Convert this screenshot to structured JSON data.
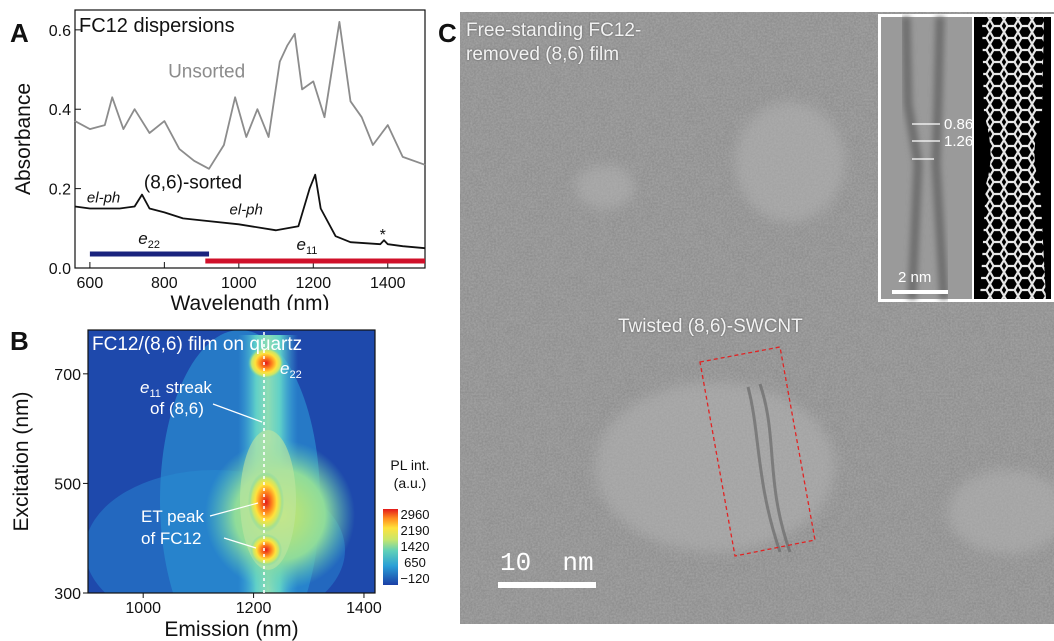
{
  "panelA": {
    "letter": "A",
    "title": "FC12 dispersions",
    "xlabel": "Wavelength (nm)",
    "ylabel": "Absorbance",
    "xticks": [
      "600",
      "800",
      "1000",
      "1200",
      "1400"
    ],
    "yticks": [
      "0.0",
      "0.2",
      "0.4",
      "0.6"
    ],
    "labels": {
      "unsorted": "Unsorted",
      "sorted": "(8,6)-sorted",
      "elph1": "el-ph",
      "elph2": "el-ph",
      "e22": "e",
      "e22sub": "22",
      "e11": "e",
      "e11sub": "11",
      "star": "*"
    },
    "colors": {
      "unsorted": "#8c8c8c",
      "sorted": "#111111",
      "e22bar": "#1a237e",
      "e11bar": "#d0102a"
    }
  },
  "panelB": {
    "letter": "B",
    "title": "FC12/(8,6) film on quartz",
    "xlabel": "Emission (nm)",
    "ylabel": "Excitation (nm)",
    "xticks": [
      "1000",
      "1200",
      "1400"
    ],
    "yticks": [
      "300",
      "500",
      "700"
    ],
    "e22": "e",
    "e22sub": "22",
    "streak1": "e",
    "streak1sub": "11",
    "streak1rest": " streak",
    "streak2": "of (8,6)",
    "et1": "ET peak",
    "et2": "of FC12",
    "cbar_title1": "PL int.",
    "cbar_title2": "(a.u.)",
    "cbar_ticks": [
      "2960",
      "2190",
      "1420",
      "650",
      "−120"
    ]
  },
  "panelC": {
    "letter": "C",
    "caption1": "Free-standing FC12-",
    "caption2": "removed (8,6) film",
    "twisted": "Twisted (8,6)-SWCNT",
    "scale": "10  nm",
    "inset_scale": "2 nm",
    "inset_val1": "0.86",
    "inset_val2": "1.26"
  },
  "chart_data": [
    {
      "type": "line",
      "title": "FC12 dispersions",
      "xlabel": "Wavelength (nm)",
      "ylabel": "Absorbance",
      "xlim": [
        560,
        1500
      ],
      "ylim": [
        0,
        0.65
      ],
      "series": [
        {
          "name": "Unsorted",
          "x": [
            560,
            600,
            640,
            660,
            690,
            720,
            760,
            800,
            840,
            880,
            920,
            960,
            990,
            1020,
            1050,
            1080,
            1110,
            1130,
            1150,
            1170,
            1200,
            1230,
            1270,
            1300,
            1330,
            1360,
            1400,
            1440,
            1500
          ],
          "y": [
            0.37,
            0.35,
            0.36,
            0.43,
            0.35,
            0.4,
            0.34,
            0.37,
            0.3,
            0.27,
            0.25,
            0.31,
            0.43,
            0.33,
            0.4,
            0.33,
            0.52,
            0.56,
            0.59,
            0.45,
            0.47,
            0.38,
            0.62,
            0.42,
            0.38,
            0.31,
            0.36,
            0.28,
            0.26
          ]
        },
        {
          "name": "(8,6)-sorted",
          "x": [
            560,
            600,
            680,
            720,
            740,
            760,
            800,
            850,
            900,
            1000,
            1100,
            1160,
            1190,
            1205,
            1220,
            1260,
            1300,
            1380,
            1390,
            1400,
            1440,
            1500
          ],
          "y": [
            0.155,
            0.15,
            0.15,
            0.155,
            0.185,
            0.15,
            0.14,
            0.125,
            0.12,
            0.11,
            0.095,
            0.105,
            0.2,
            0.235,
            0.15,
            0.08,
            0.065,
            0.06,
            0.07,
            0.06,
            0.055,
            0.05
          ]
        }
      ]
    },
    {
      "type": "heatmap",
      "title": "FC12/(8,6) film on quartz",
      "xlabel": "Emission (nm)",
      "ylabel": "Excitation (nm)",
      "xlim": [
        900,
        1420
      ],
      "ylim": [
        300,
        780
      ],
      "colorbar": {
        "title": "PL int. (a.u.)",
        "ticks": [
          2960,
          2190,
          1420,
          650,
          -120
        ]
      },
      "peaks": [
        {
          "x": 1210,
          "y": 728,
          "label": "e22"
        },
        {
          "x": 1210,
          "y": 460,
          "label": "ET peak of FC12"
        },
        {
          "x": 1210,
          "y": 378,
          "label": "ET peak of FC12"
        }
      ]
    }
  ]
}
